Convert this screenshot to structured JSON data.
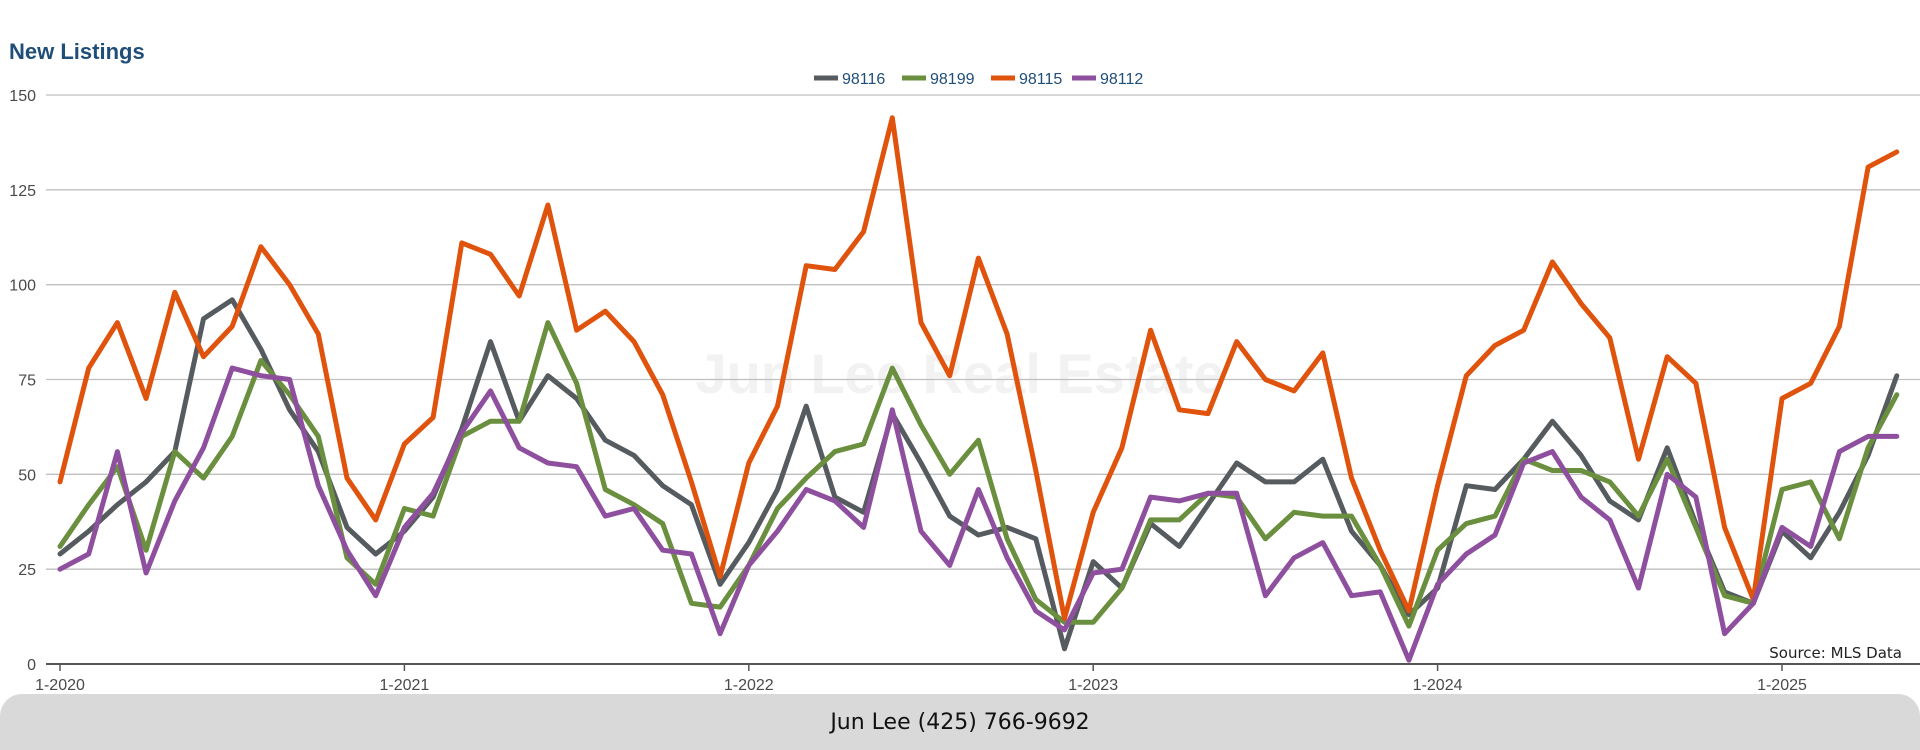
{
  "footer": {
    "contact": "Jun Lee (425) 766-9692"
  },
  "colors": {
    "98116": "#555b5e",
    "98199": "#6a8f3e",
    "98115": "#e0530d",
    "98112": "#8e4f9f",
    "title": "#1f4e79",
    "grid": "#bfbfbf",
    "footer_bg": "#d9d9d9"
  },
  "chart_data": {
    "type": "line",
    "title": "New Listings",
    "watermark": "Jun Lee Real Estate",
    "source": "Source: MLS Data",
    "xlabel": "",
    "ylabel": "",
    "x_ticks": [
      "1-2020",
      "1-2021",
      "1-2022",
      "1-2023",
      "1-2024",
      "1-2025"
    ],
    "x_start": "2020-01",
    "x_end": "2025-05",
    "ylim": [
      0,
      150
    ],
    "y_ticks": [
      0,
      25,
      50,
      75,
      100,
      125,
      150
    ],
    "grid": true,
    "legend_position": "top-center",
    "series": [
      {
        "name": "98116",
        "values": [
          29,
          35,
          42,
          48,
          56,
          91,
          96,
          83,
          67,
          56,
          36,
          29,
          35,
          44,
          62,
          85,
          64,
          76,
          70,
          59,
          55,
          47,
          42,
          21,
          32,
          46,
          68,
          44,
          40,
          66,
          53,
          39,
          34,
          36,
          33,
          4,
          27,
          20,
          37,
          31,
          42,
          53,
          48,
          48,
          54,
          35,
          26,
          13,
          20,
          47,
          46,
          54,
          64,
          55,
          43,
          38,
          57,
          37,
          19,
          16,
          35,
          28,
          40,
          55,
          76
        ]
      },
      {
        "name": "98199",
        "values": [
          31,
          42,
          52,
          30,
          56,
          49,
          60,
          80,
          71,
          60,
          28,
          21,
          41,
          39,
          60,
          64,
          64,
          90,
          74,
          46,
          42,
          37,
          16,
          15,
          26,
          41,
          49,
          56,
          58,
          78,
          63,
          50,
          59,
          33,
          17,
          11,
          11,
          20,
          38,
          38,
          45,
          44,
          33,
          40,
          39,
          39,
          26,
          10,
          30,
          37,
          39,
          54,
          51,
          51,
          48,
          39,
          54,
          36,
          18,
          16,
          46,
          48,
          33,
          57,
          71
        ]
      },
      {
        "name": "98115",
        "values": [
          48,
          78,
          90,
          70,
          98,
          81,
          89,
          110,
          100,
          87,
          49,
          38,
          58,
          65,
          111,
          108,
          97,
          121,
          88,
          93,
          85,
          71,
          48,
          23,
          53,
          68,
          105,
          104,
          114,
          144,
          90,
          76,
          107,
          87,
          51,
          12,
          40,
          57,
          88,
          67,
          66,
          85,
          75,
          72,
          82,
          49,
          30,
          14,
          47,
          76,
          84,
          88,
          106,
          95,
          86,
          54,
          81,
          74,
          36,
          17,
          70,
          74,
          89,
          131,
          135
        ]
      },
      {
        "name": "98112",
        "values": [
          25,
          29,
          56,
          24,
          43,
          57,
          78,
          76,
          75,
          47,
          30,
          18,
          36,
          45,
          61,
          72,
          57,
          53,
          52,
          39,
          41,
          30,
          29,
          8,
          26,
          35,
          46,
          43,
          36,
          67,
          35,
          26,
          46,
          28,
          14,
          9,
          24,
          25,
          44,
          43,
          45,
          45,
          18,
          28,
          32,
          18,
          19,
          1,
          21,
          29,
          34,
          53,
          56,
          44,
          38,
          20,
          50,
          44,
          8,
          16,
          36,
          31,
          56,
          60,
          60
        ]
      }
    ]
  }
}
